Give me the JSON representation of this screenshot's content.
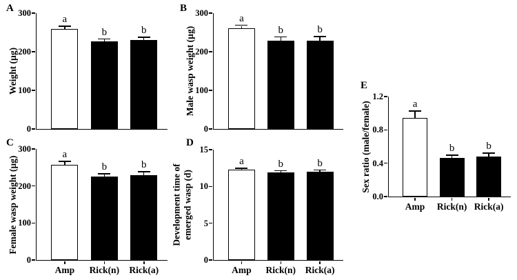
{
  "figure": {
    "background_color": "#ffffff",
    "ink_color": "#000000",
    "bar_outline_color": "#000000"
  },
  "chart_data": [
    {
      "panel": "A",
      "type": "bar",
      "ylabel": "Weight (µg)",
      "xlabel": "",
      "categories": [
        "Amp",
        "Rick(n)",
        "Rick(a)"
      ],
      "values": [
        259,
        227,
        230
      ],
      "errors": [
        6,
        5,
        6
      ],
      "sig_letters": [
        "a",
        "b",
        "b"
      ],
      "ylim": [
        0,
        300
      ],
      "yticks": [
        0,
        100,
        200,
        300
      ],
      "ytick_labels": [
        "0",
        "100",
        "200",
        "300"
      ],
      "bar_fills": [
        "#ffffff",
        "#000000",
        "#000000"
      ],
      "show_x_labels": false,
      "grid": false,
      "legend": null
    },
    {
      "panel": "B",
      "type": "bar",
      "ylabel": "Male wasp weight (µg)",
      "xlabel": "",
      "categories": [
        "Amp",
        "Rick(n)",
        "Rick(a)"
      ],
      "values": [
        260,
        229,
        228
      ],
      "errors": [
        7,
        8,
        10
      ],
      "sig_letters": [
        "a",
        "b",
        "b"
      ],
      "ylim": [
        0,
        300
      ],
      "yticks": [
        0,
        100,
        200,
        300
      ],
      "ytick_labels": [
        "0",
        "100",
        "200",
        "300"
      ],
      "bar_fills": [
        "#ffffff",
        "#000000",
        "#000000"
      ],
      "show_x_labels": false,
      "grid": false,
      "legend": null
    },
    {
      "panel": "C",
      "type": "bar",
      "ylabel": "Female wasp weight (µg)",
      "xlabel": "",
      "categories": [
        "Amp",
        "Rick(n)",
        "Rick(a)"
      ],
      "values": [
        257,
        225,
        229
      ],
      "errors": [
        8,
        7,
        8
      ],
      "sig_letters": [
        "a",
        "b",
        "b"
      ],
      "ylim": [
        0,
        300
      ],
      "yticks": [
        0,
        100,
        200,
        300
      ],
      "ytick_labels": [
        "0",
        "100",
        "200",
        "300"
      ],
      "bar_fills": [
        "#ffffff",
        "#000000",
        "#000000"
      ],
      "show_x_labels": true,
      "grid": false,
      "legend": null
    },
    {
      "panel": "D",
      "type": "bar",
      "ylabel": "Development time of\nemerged wasp (d)",
      "xlabel": "",
      "categories": [
        "Amp",
        "Rick(n)",
        "Rick(a)"
      ],
      "values": [
        12.3,
        11.9,
        12.0
      ],
      "errors": [
        0.1,
        0.15,
        0.15
      ],
      "sig_letters": [
        "a",
        "b",
        "b"
      ],
      "ylim": [
        0,
        15
      ],
      "yticks": [
        0,
        5,
        10,
        15
      ],
      "ytick_labels": [
        "0",
        "5",
        "10",
        "15"
      ],
      "bar_fills": [
        "#ffffff",
        "#000000",
        "#000000"
      ],
      "show_x_labels": true,
      "grid": false,
      "legend": null
    },
    {
      "panel": "E",
      "type": "bar",
      "ylabel": "Sex ratio (male/female)",
      "xlabel": "",
      "categories": [
        "Amp",
        "Rick(n)",
        "Rick(a)"
      ],
      "values": [
        0.94,
        0.46,
        0.48
      ],
      "errors": [
        0.08,
        0.03,
        0.035
      ],
      "sig_letters": [
        "a",
        "b",
        "b"
      ],
      "ylim": [
        0,
        1.2
      ],
      "yticks": [
        0,
        0.4,
        0.8,
        1.2
      ],
      "ytick_labels": [
        "0.0",
        "0.4",
        "0.8",
        "1.2"
      ],
      "bar_fills": [
        "#ffffff",
        "#000000",
        "#000000"
      ],
      "show_x_labels": true,
      "grid": false,
      "legend": null
    }
  ]
}
